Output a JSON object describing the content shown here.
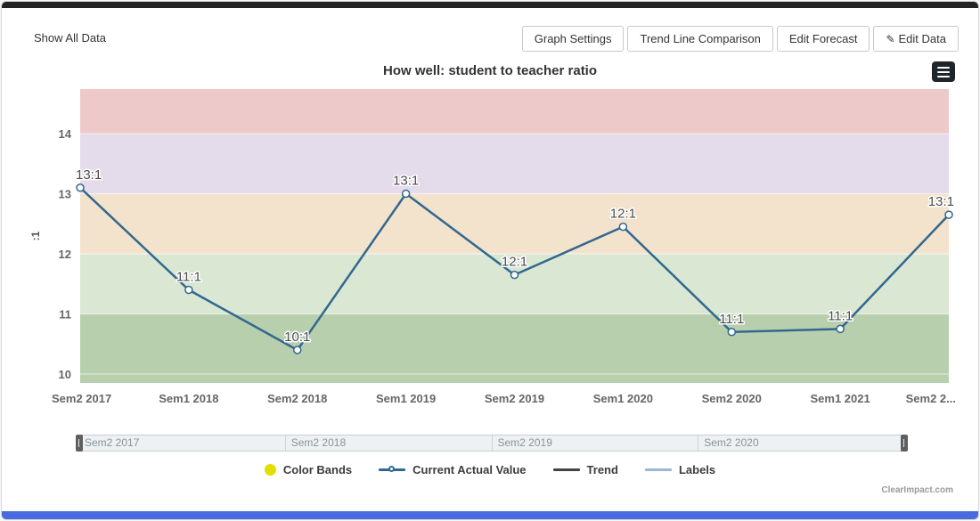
{
  "header": {
    "show_all_data": "Show All Data"
  },
  "toolbar": {
    "buttons": [
      {
        "label": "Graph Settings"
      },
      {
        "label": "Trend Line Comparison"
      },
      {
        "label": "Edit Forecast"
      },
      {
        "label": "Edit Data",
        "icon": "pencil-icon"
      }
    ],
    "menu_icon": "hamburger-icon"
  },
  "chart_data": {
    "type": "line",
    "title": "How well: student to teacher ratio",
    "xlabel": "",
    "ylabel": ":1",
    "categories": [
      "Sem2 2017",
      "Sem1 2018",
      "Sem2 2018",
      "Sem1 2019",
      "Sem2 2019",
      "Sem1 2020",
      "Sem2 2020",
      "Sem1 2021",
      "Sem2 2..."
    ],
    "series": [
      {
        "name": "Current Actual Value",
        "values": [
          13.1,
          11.4,
          10.4,
          13.0,
          11.65,
          12.45,
          10.7,
          10.75,
          12.65
        ],
        "point_labels": [
          "13:1",
          "11:1",
          "10:1",
          "13:1",
          "12:1",
          "12:1",
          "11:1",
          "11:1",
          "13:1"
        ],
        "color": "#31688f"
      }
    ],
    "yticks": [
      10,
      11,
      12,
      13,
      14
    ],
    "ylim": [
      9.85,
      14.75
    ],
    "grid": "white lines at integer ticks",
    "legend_position": "bottom",
    "color_bands": [
      {
        "from": 14,
        "to": 14.75,
        "color": "#eec9c9"
      },
      {
        "from": 13,
        "to": 14,
        "color": "#e4dcea"
      },
      {
        "from": 12,
        "to": 13,
        "color": "#f3e3cd"
      },
      {
        "from": 11,
        "to": 12,
        "color": "#dae8d3"
      },
      {
        "from": 9.85,
        "to": 11,
        "color": "#b8cfae"
      }
    ],
    "navigator_labels": [
      "Sem2 2017",
      "Sem2 2018",
      "Sem2 2019",
      "Sem2 2020"
    ]
  },
  "legend": {
    "items": [
      {
        "label": "Color Bands",
        "color": "#e3de00",
        "type": "circle"
      },
      {
        "label": "Current Actual Value",
        "color": "#31688f",
        "type": "line-marker"
      },
      {
        "label": "Trend",
        "color": "#444444",
        "type": "line"
      },
      {
        "label": "Labels",
        "color": "#9bb7d4",
        "type": "line"
      }
    ]
  },
  "footer": {
    "brand": "ClearImpact.com"
  }
}
